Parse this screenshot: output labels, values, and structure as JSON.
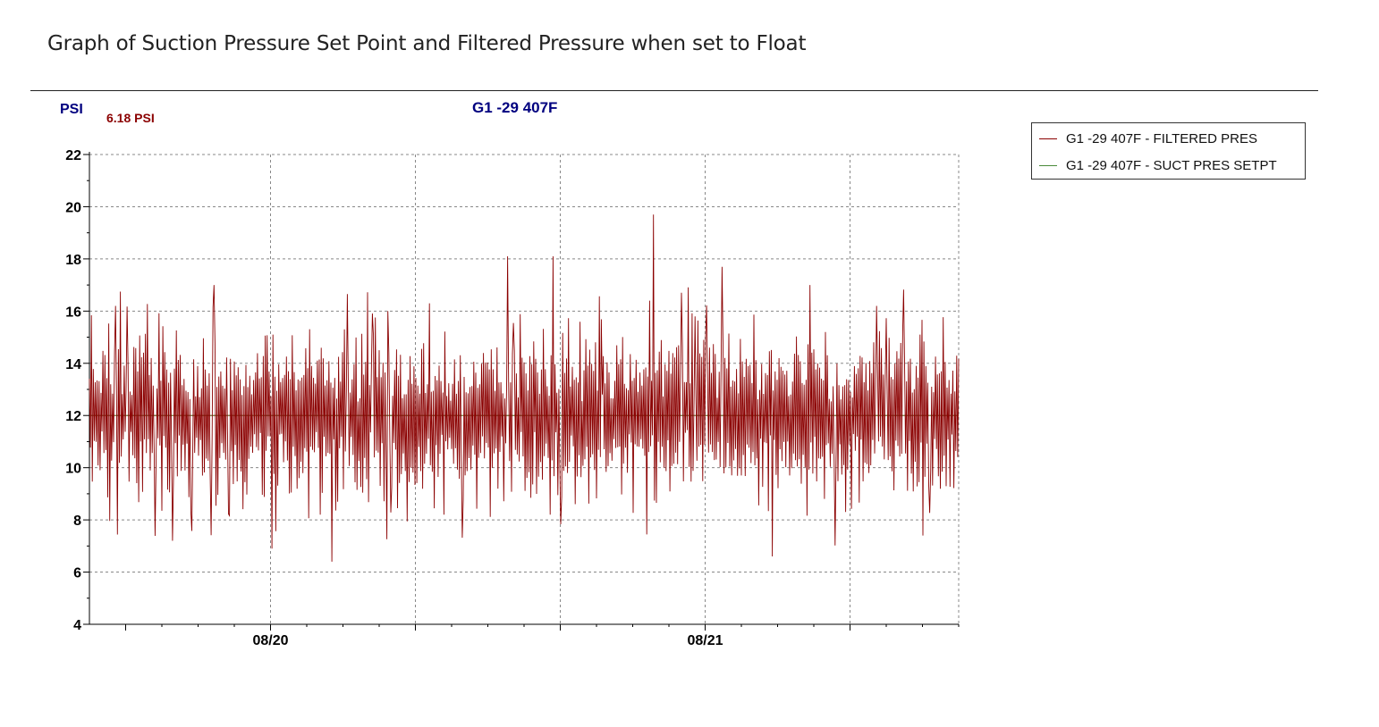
{
  "doc_heading": "Graph of Suction Pressure Set Point and Filtered Pressure when set to Float",
  "colors": {
    "filtered": "#8b0000",
    "setpoint": "#6b7a3a",
    "axis_label": "#00007f",
    "readout": "#8b0000",
    "grid": "#888888"
  },
  "chart_data": {
    "type": "line",
    "title": "G1 -29 407F",
    "ylabel": "PSI",
    "cursor_readout": "6.18 PSI",
    "ylim": [
      4,
      22
    ],
    "yticks": [
      4,
      6,
      8,
      10,
      12,
      14,
      16,
      18,
      20,
      22
    ],
    "xlim": [
      "08/19 14:00",
      "08/21 14:00"
    ],
    "xtick_labels": [
      {
        "label": "08/20",
        "at": "08/20 00:00"
      },
      {
        "label": "08/21",
        "at": "08/21 00:00"
      }
    ],
    "grid": true,
    "legend_position": "top-right",
    "series": [
      {
        "name": "G1 -29 407F - FILTERED PRES",
        "color": "#8b0000",
        "peaks": [
          16.2,
          7.2,
          17.0,
          6.9,
          6.4,
          16.0,
          16.3,
          18.1,
          18.1,
          12.8,
          19.7,
          17.7,
          6.6,
          17.0,
          16.2,
          7.4
        ],
        "typical_range": [
          9.0,
          15.0
        ],
        "mean": 12.0
      },
      {
        "name": "G1 -29 407F - SUCT PRES SETPT",
        "color": "#6b7a3a",
        "values": [
          12.0,
          12.0
        ]
      }
    ]
  }
}
